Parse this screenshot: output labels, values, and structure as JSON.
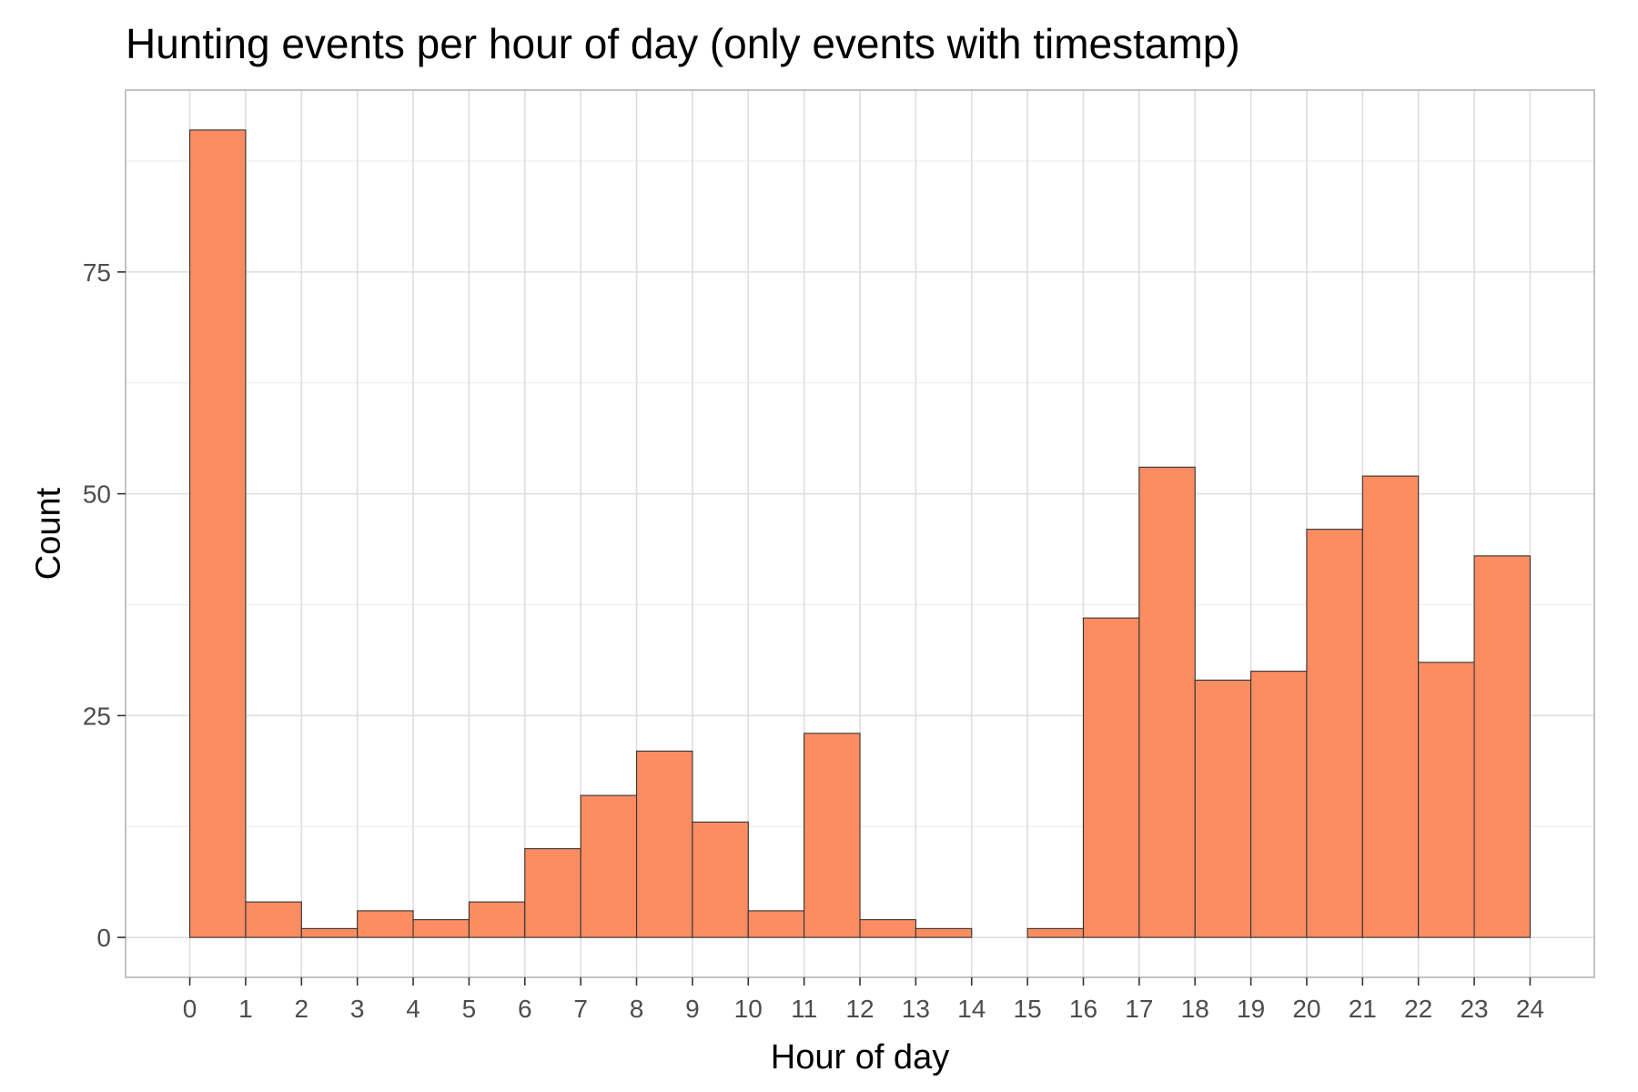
{
  "chart_data": {
    "type": "bar",
    "title": "Hunting events per hour of day (only events with timestamp)",
    "xlabel": "Hour of day",
    "ylabel": "Count",
    "x_ticks": [
      "0",
      "1",
      "2",
      "3",
      "4",
      "5",
      "6",
      "7",
      "8",
      "9",
      "10",
      "11",
      "12",
      "13",
      "14",
      "15",
      "16",
      "17",
      "18",
      "19",
      "20",
      "21",
      "22",
      "23",
      "24"
    ],
    "y_ticks": [
      "0",
      "25",
      "50",
      "75"
    ],
    "bins": [
      {
        "start": 0,
        "end": 1,
        "value": 91
      },
      {
        "start": 1,
        "end": 2,
        "value": 4
      },
      {
        "start": 2,
        "end": 3,
        "value": 1
      },
      {
        "start": 3,
        "end": 4,
        "value": 3
      },
      {
        "start": 4,
        "end": 5,
        "value": 2
      },
      {
        "start": 5,
        "end": 6,
        "value": 4
      },
      {
        "start": 6,
        "end": 7,
        "value": 10
      },
      {
        "start": 7,
        "end": 8,
        "value": 16
      },
      {
        "start": 8,
        "end": 9,
        "value": 21
      },
      {
        "start": 9,
        "end": 10,
        "value": 13
      },
      {
        "start": 10,
        "end": 11,
        "value": 3
      },
      {
        "start": 11,
        "end": 12,
        "value": 23
      },
      {
        "start": 12,
        "end": 13,
        "value": 2
      },
      {
        "start": 13,
        "end": 14,
        "value": 1
      },
      {
        "start": 14,
        "end": 15,
        "value": 0
      },
      {
        "start": 15,
        "end": 16,
        "value": 1
      },
      {
        "start": 16,
        "end": 17,
        "value": 36
      },
      {
        "start": 17,
        "end": 18,
        "value": 53
      },
      {
        "start": 18,
        "end": 19,
        "value": 29
      },
      {
        "start": 19,
        "end": 20,
        "value": 30
      },
      {
        "start": 20,
        "end": 21,
        "value": 46
      },
      {
        "start": 21,
        "end": 22,
        "value": 52
      },
      {
        "start": 22,
        "end": 23,
        "value": 31
      },
      {
        "start": 23,
        "end": 24,
        "value": 43
      }
    ],
    "xlim": [
      -1.15,
      25.15
    ],
    "ylim": [
      -4.5,
      95.5
    ],
    "grid": true,
    "legend": "none",
    "bar_fill": "#fc8d62",
    "bar_stroke": "#333333",
    "panel_border": "#b3b3b3",
    "grid_major": "#dedede",
    "grid_minor": "#efefef"
  }
}
